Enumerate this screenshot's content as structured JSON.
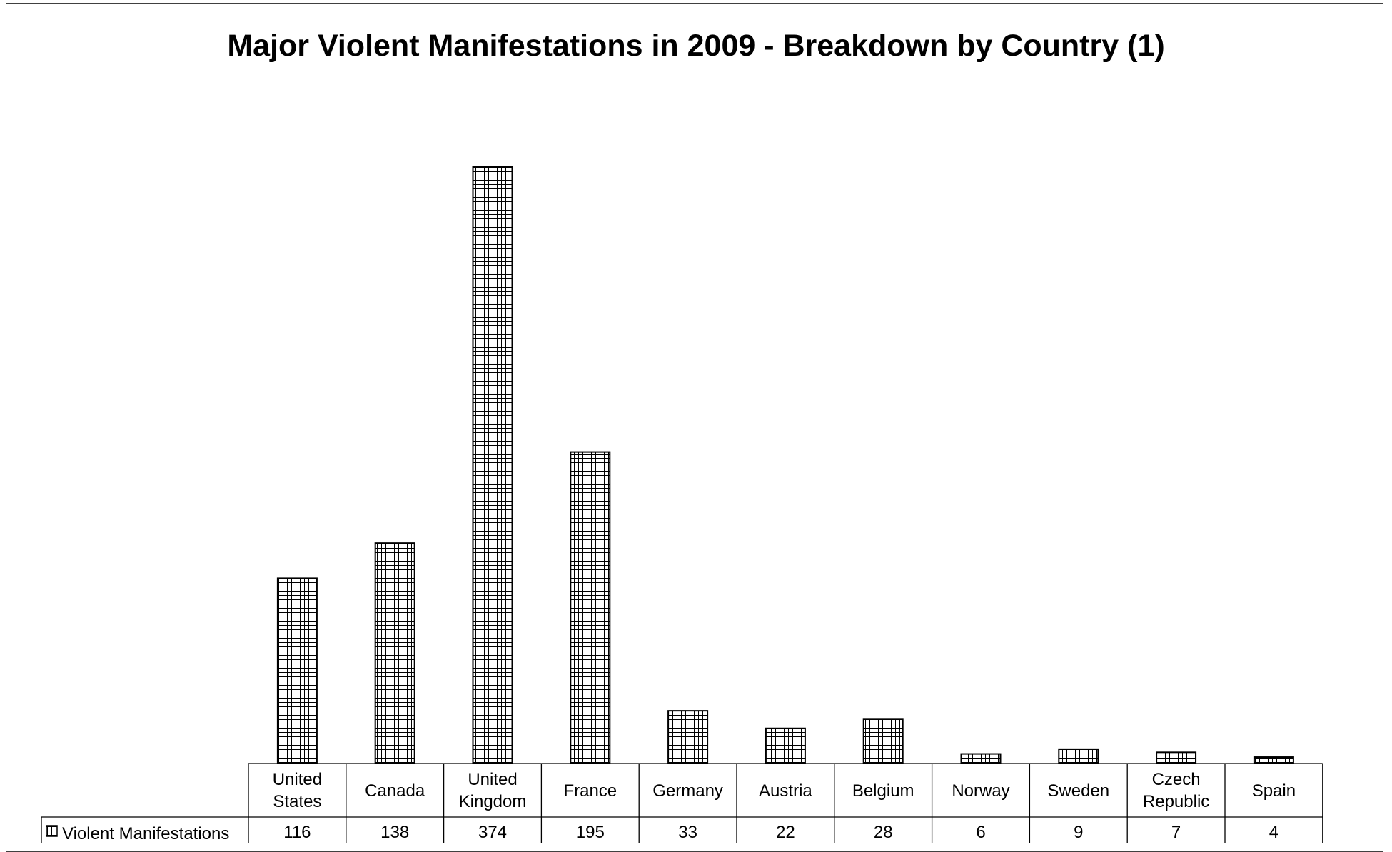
{
  "chart_data": {
    "type": "bar",
    "title": "Major Violent Manifestations in 2009 - Breakdown by Country (1)",
    "categories": [
      [
        "United",
        "States"
      ],
      [
        "Canada"
      ],
      [
        "United",
        "Kingdom"
      ],
      [
        "France"
      ],
      [
        "Germany"
      ],
      [
        "Austria"
      ],
      [
        "Belgium"
      ],
      [
        "Norway"
      ],
      [
        "Sweden"
      ],
      [
        "Czech",
        "Republic"
      ],
      [
        "Spain"
      ]
    ],
    "series": [
      {
        "name": "Violent Manifestations",
        "values": [
          116,
          138,
          374,
          195,
          33,
          22,
          28,
          6,
          9,
          7,
          4
        ]
      }
    ],
    "ylim": [
      0,
      374
    ],
    "grid": false,
    "legend": "data-table-row-left",
    "bar_fill": "grid-hatch",
    "colors": {
      "bar_border": "#000000",
      "hatch": "#000000",
      "background": "#ffffff"
    },
    "legend_icon": "grid-hatch-swatch-icon"
  }
}
